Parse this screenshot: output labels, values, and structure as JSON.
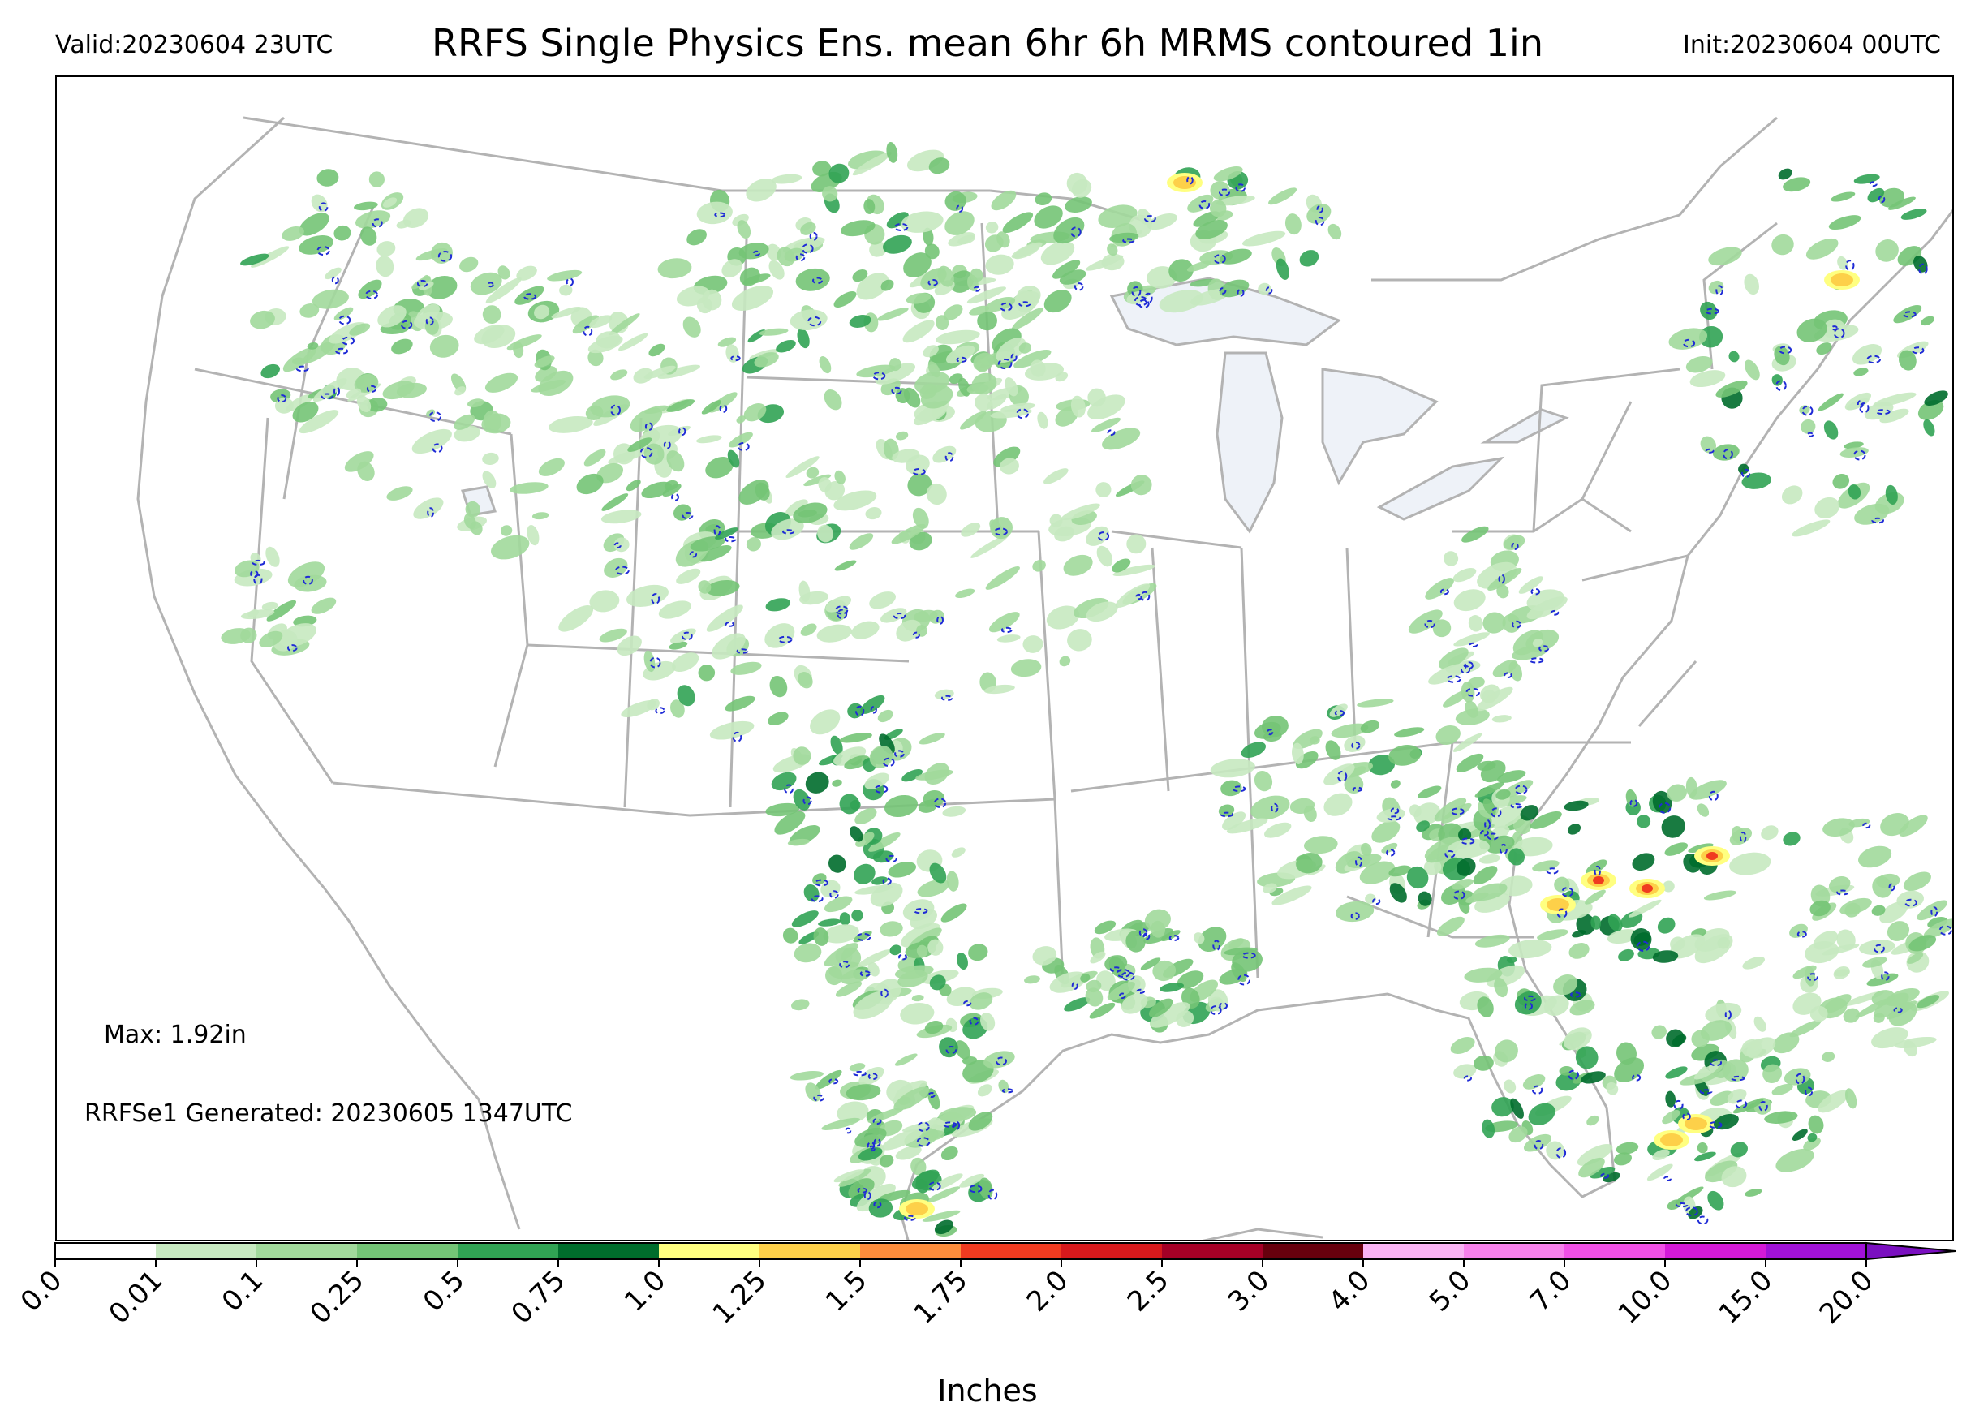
{
  "header": {
    "valid": "Valid:20230604 23UTC",
    "title": "RRFS Single Physics Ens. mean 6hr 6h MRMS contoured 1in",
    "init": "Init:20230604 00UTC"
  },
  "annotations": {
    "max": "Max: 1.92in",
    "generated": "RRFSe1 Generated: 20230605 1347UTC"
  },
  "colorbar": {
    "title": "Inches",
    "extend": "max",
    "levels": [
      "0.0",
      "0.01",
      "0.1",
      "0.25",
      "0.5",
      "0.75",
      "1.0",
      "1.25",
      "1.5",
      "1.75",
      "2.0",
      "2.5",
      "3.0",
      "4.0",
      "5.0",
      "7.0",
      "10.0",
      "15.0",
      "20.0"
    ],
    "colors": [
      "#ffffff",
      "#c7e9c0",
      "#a1d99b",
      "#74c476",
      "#31a354",
      "#006d2c",
      "#ffff80",
      "#fdd049",
      "#fd8d3c",
      "#f03b20",
      "#d7191c",
      "#a50026",
      "#67000d",
      "#f9b3f4",
      "#f781ec",
      "#f050e6",
      "#d41ad8",
      "#a012d8",
      "#7a0fc0"
    ],
    "contour_color": "#1f2bd6"
  },
  "map": {
    "region": "CONUS",
    "land_color": "#ffffff",
    "lake_color": "#eef2f8",
    "border_color": "#b3b3b3",
    "rain_colors": {
      "light": "#c7e9c0",
      "moderate": "#a1d99b",
      "heavy": "#74c476",
      "very_heavy": "#31a354",
      "extreme": "#006d2c",
      "yellow": "#ffff80",
      "orange": "#fdd049",
      "red": "#f03b20"
    }
  }
}
